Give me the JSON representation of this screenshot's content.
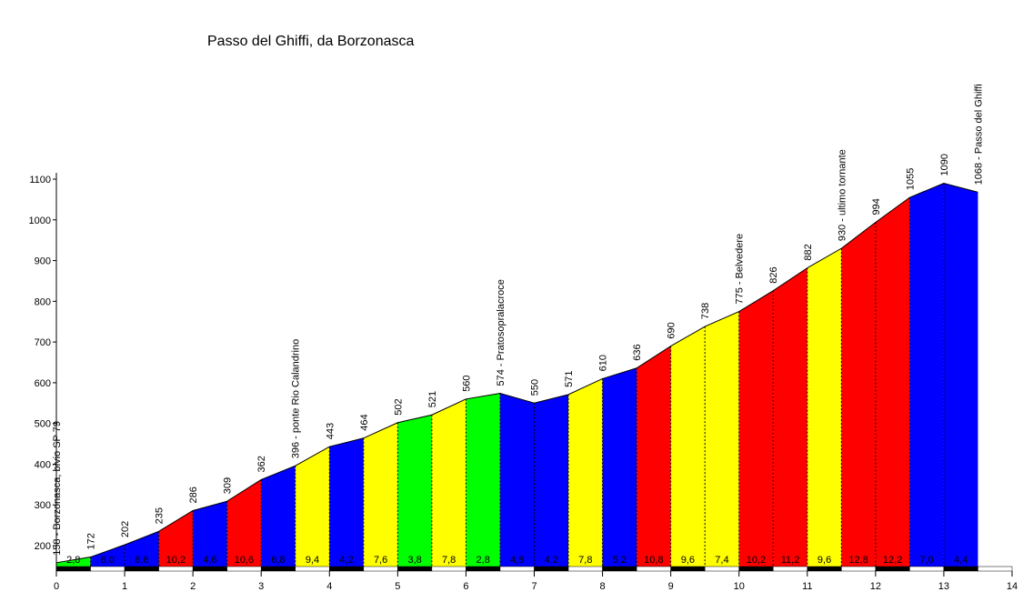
{
  "chart_data": {
    "type": "area",
    "title": "Passo del Ghiffi, da Borzonasca",
    "xlabel": "",
    "ylabel": "",
    "xlim": [
      0,
      14
    ],
    "ylim": [
      145,
      1100
    ],
    "y_ticks": [
      200,
      300,
      400,
      500,
      600,
      700,
      800,
      900,
      1000,
      1100
    ],
    "x_ticks": [
      0,
      1,
      2,
      3,
      4,
      5,
      6,
      7,
      8,
      9,
      10,
      11,
      12,
      13,
      14
    ],
    "grid": false,
    "points": [
      {
        "x": 0,
        "y": 158,
        "label": "158 - Borzonasca, bivio SP 79"
      },
      {
        "x": 0.5,
        "y": 172,
        "label": "172"
      },
      {
        "x": 1,
        "y": 202,
        "label": "202"
      },
      {
        "x": 1.5,
        "y": 235,
        "label": "235"
      },
      {
        "x": 2,
        "y": 286,
        "label": "286"
      },
      {
        "x": 2.5,
        "y": 309,
        "label": "309"
      },
      {
        "x": 3,
        "y": 362,
        "label": "362"
      },
      {
        "x": 3.5,
        "y": 396,
        "label": "396 - ponte Rio Calandrino"
      },
      {
        "x": 4,
        "y": 443,
        "label": "443"
      },
      {
        "x": 4.5,
        "y": 464,
        "label": "464"
      },
      {
        "x": 5,
        "y": 502,
        "label": "502"
      },
      {
        "x": 5.5,
        "y": 521,
        "label": "521"
      },
      {
        "x": 6,
        "y": 560,
        "label": "560"
      },
      {
        "x": 6.5,
        "y": 574,
        "label": "574 - Pratosopralacroce"
      },
      {
        "x": 7,
        "y": 550,
        "label": "550"
      },
      {
        "x": 7.5,
        "y": 571,
        "label": "571"
      },
      {
        "x": 8,
        "y": 610,
        "label": "610"
      },
      {
        "x": 8.5,
        "y": 636,
        "label": "636"
      },
      {
        "x": 9,
        "y": 690,
        "label": "690"
      },
      {
        "x": 9.5,
        "y": 738,
        "label": "738"
      },
      {
        "x": 10,
        "y": 775,
        "label": "775 - Belvedere"
      },
      {
        "x": 10.5,
        "y": 826,
        "label": "826"
      },
      {
        "x": 11,
        "y": 882,
        "label": "882"
      },
      {
        "x": 11.5,
        "y": 930,
        "label": "930 - ultimo tornante"
      },
      {
        "x": 12,
        "y": 994,
        "label": "994"
      },
      {
        "x": 12.5,
        "y": 1055,
        "label": "1055"
      },
      {
        "x": 13,
        "y": 1090,
        "label": "1090"
      },
      {
        "x": 13.5,
        "y": 1068,
        "label": "1068 - Passo del Ghiffi"
      }
    ],
    "segments": [
      {
        "grade": "2,8",
        "color": "#00ff00"
      },
      {
        "grade": "6,0",
        "color": "#0000ff"
      },
      {
        "grade": "6,6",
        "color": "#0000ff"
      },
      {
        "grade": "10,2",
        "color": "#ff0000"
      },
      {
        "grade": "4,6",
        "color": "#0000ff"
      },
      {
        "grade": "10,6",
        "color": "#ff0000"
      },
      {
        "grade": "6,8",
        "color": "#0000ff"
      },
      {
        "grade": "9,4",
        "color": "#ffff00"
      },
      {
        "grade": "4,2",
        "color": "#0000ff"
      },
      {
        "grade": "7,6",
        "color": "#ffff00"
      },
      {
        "grade": "3,8",
        "color": "#00ff00"
      },
      {
        "grade": "7,8",
        "color": "#ffff00"
      },
      {
        "grade": "2,8",
        "color": "#00ff00"
      },
      {
        "grade": "4,8",
        "color": "#0000ff"
      },
      {
        "grade": "4,2",
        "color": "#0000ff"
      },
      {
        "grade": "7,8",
        "color": "#ffff00"
      },
      {
        "grade": "5,2",
        "color": "#0000ff"
      },
      {
        "grade": "10,8",
        "color": "#ff0000"
      },
      {
        "grade": "9,6",
        "color": "#ffff00"
      },
      {
        "grade": "7,4",
        "color": "#ffff00"
      },
      {
        "grade": "10,2",
        "color": "#ff0000"
      },
      {
        "grade": "11,2",
        "color": "#ff0000"
      },
      {
        "grade": "9,6",
        "color": "#ffff00"
      },
      {
        "grade": "12,8",
        "color": "#ff0000"
      },
      {
        "grade": "12,2",
        "color": "#ff0000"
      },
      {
        "grade": "7,0",
        "color": "#0000ff"
      },
      {
        "grade": "4,4",
        "color": "#0000ff"
      }
    ]
  }
}
